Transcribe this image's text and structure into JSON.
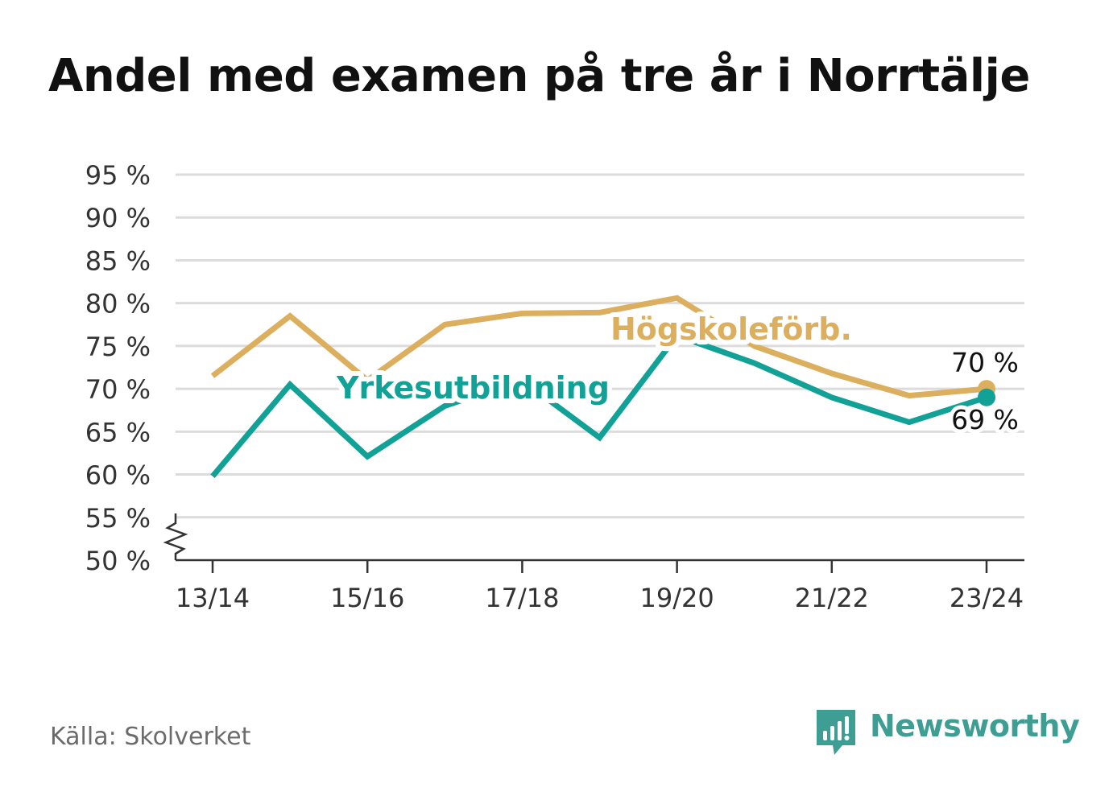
{
  "chart_data": {
    "type": "line",
    "title": "Andel med examen på tre år i Norrtälje",
    "categories": [
      "13/14",
      "14/15",
      "15/16",
      "16/17",
      "17/18",
      "18/19",
      "19/20",
      "20/21",
      "21/22",
      "22/23",
      "23/24"
    ],
    "x_tick_labels": [
      "13/14",
      "15/16",
      "17/18",
      "19/20",
      "21/22",
      "23/24"
    ],
    "y_tick_labels": [
      "50 %",
      "55 %",
      "60 %",
      "65 %",
      "70 %",
      "75 %",
      "80 %",
      "85 %",
      "90 %",
      "95 %"
    ],
    "ylim": [
      50,
      95
    ],
    "y_axis_break": true,
    "grid": true,
    "series": [
      {
        "name": "Högskoleförb.",
        "color": "#dcaf5f",
        "values": [
          71.5,
          78.5,
          71,
          77.5,
          78.8,
          78.9,
          80.6,
          75,
          71.8,
          69.2,
          70
        ],
        "end_label": "70 %"
      },
      {
        "name": "Yrkesutbildning",
        "color": "#11a197",
        "values": [
          59.8,
          70.5,
          62.1,
          68,
          71,
          64.3,
          76.2,
          73,
          69,
          66.1,
          69
        ],
        "end_label": "69 %"
      }
    ]
  },
  "source": "Källa: Skolverket",
  "brand": {
    "name": "Newsworthy",
    "icon": "newsworthy-logo-icon",
    "color": "#3f9e94"
  }
}
